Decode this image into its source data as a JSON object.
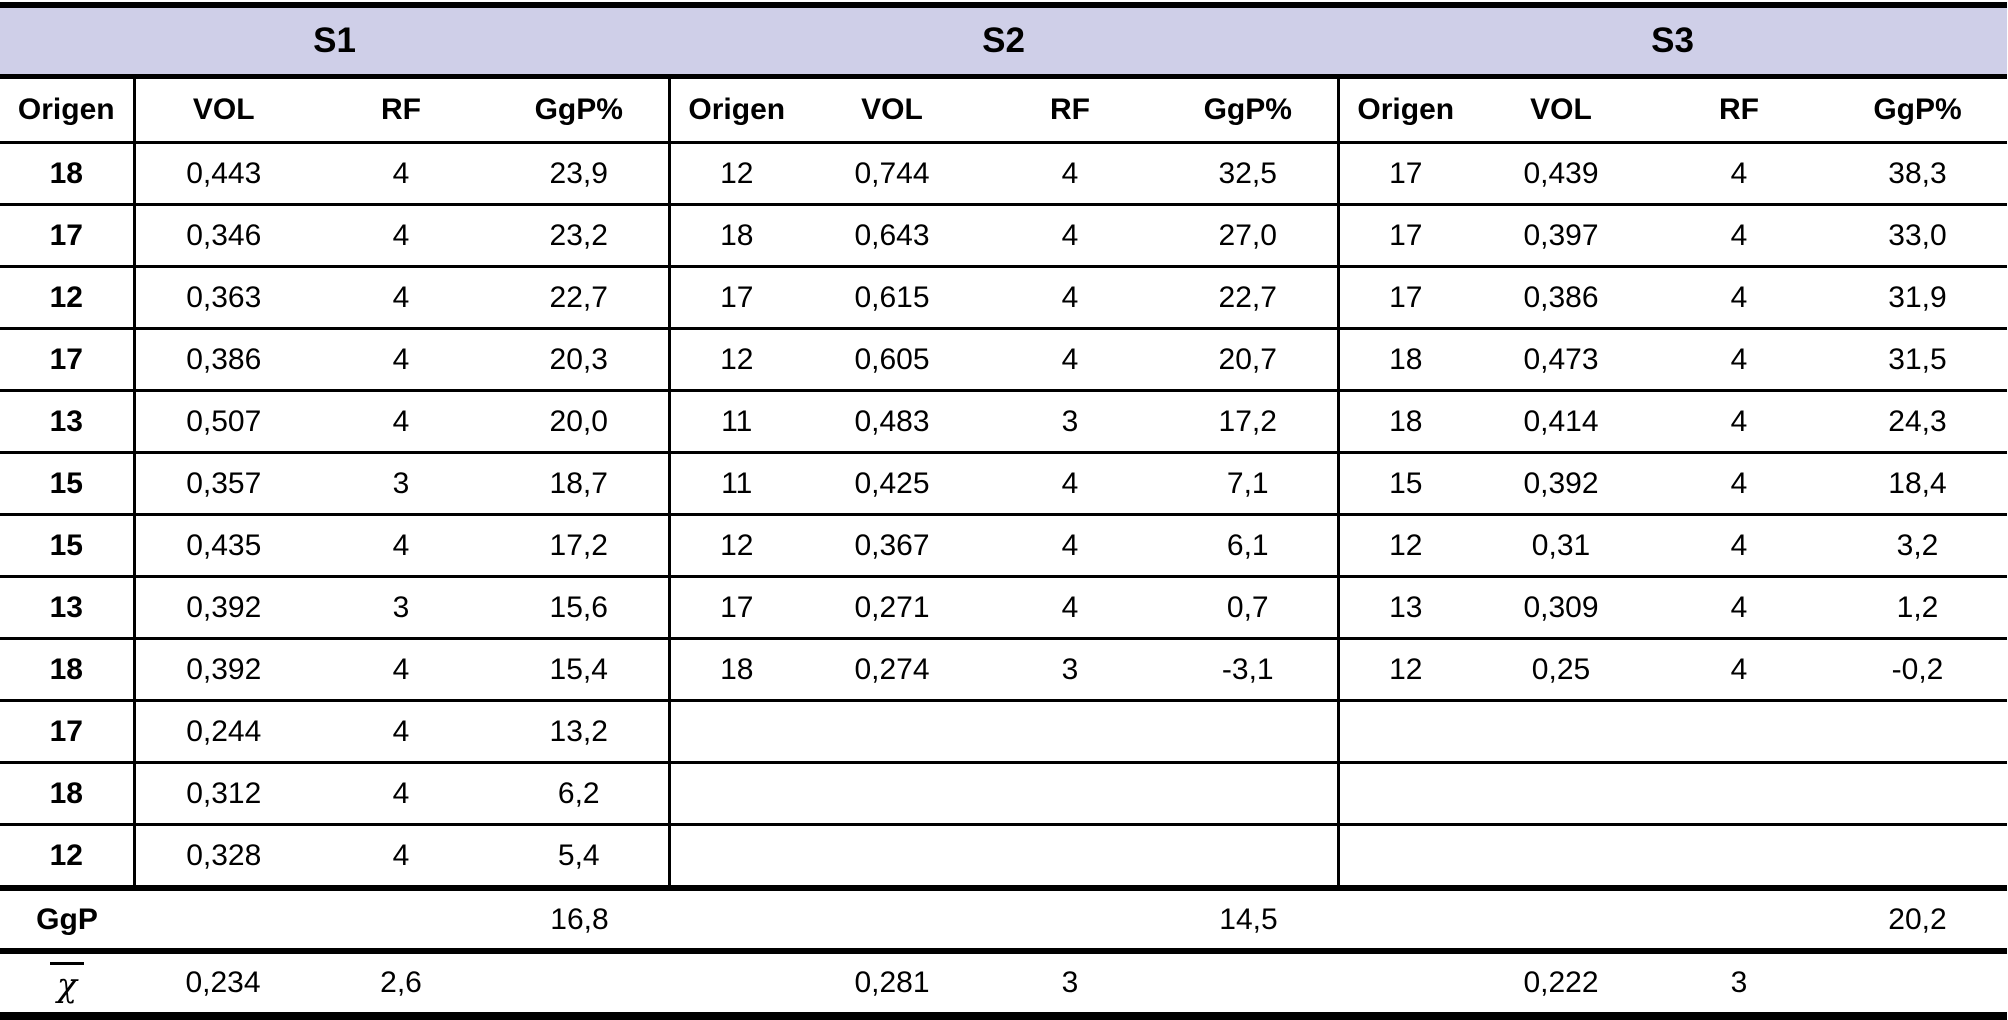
{
  "colors": {
    "band_bg": "#cfcfe8",
    "line": "#000000",
    "text": "#000000",
    "page_bg": "#ffffff"
  },
  "table": {
    "max_rows": 12,
    "summary": {
      "ggp_label": "GgP",
      "mean_label": "χ"
    },
    "sections": [
      {
        "title": "S1",
        "columns": [
          "Origen",
          "VOL",
          "RF",
          "GgP%"
        ],
        "rows": [
          [
            "18",
            "0,443",
            "4",
            "23,9"
          ],
          [
            "17",
            "0,346",
            "4",
            "23,2"
          ],
          [
            "12",
            "0,363",
            "4",
            "22,7"
          ],
          [
            "17",
            "0,386",
            "4",
            "20,3"
          ],
          [
            "13",
            "0,507",
            "4",
            "20,0"
          ],
          [
            "15",
            "0,357",
            "3",
            "18,7"
          ],
          [
            "15",
            "0,435",
            "4",
            "17,2"
          ],
          [
            "13",
            "0,392",
            "3",
            "15,6"
          ],
          [
            "18",
            "0,392",
            "4",
            "15,4"
          ],
          [
            "17",
            "0,244",
            "4",
            "13,2"
          ],
          [
            "18",
            "0,312",
            "4",
            "6,2"
          ],
          [
            "12",
            "0,328",
            "4",
            "5,4"
          ]
        ],
        "ggp_total": "16,8",
        "mean_vol": "0,234",
        "mean_rf": "2,6"
      },
      {
        "title": "S2",
        "columns": [
          "Origen",
          "VOL",
          "RF",
          "GgP%"
        ],
        "rows": [
          [
            "12",
            "0,744",
            "4",
            "32,5"
          ],
          [
            "18",
            "0,643",
            "4",
            "27,0"
          ],
          [
            "17",
            "0,615",
            "4",
            "22,7"
          ],
          [
            "12",
            "0,605",
            "4",
            "20,7"
          ],
          [
            "11",
            "0,483",
            "3",
            "17,2"
          ],
          [
            "11",
            "0,425",
            "4",
            "7,1"
          ],
          [
            "12",
            "0,367",
            "4",
            "6,1"
          ],
          [
            "17",
            "0,271",
            "4",
            "0,7"
          ],
          [
            "18",
            "0,274",
            "3",
            "-3,1"
          ]
        ],
        "ggp_total": "14,5",
        "mean_vol": "0,281",
        "mean_rf": "3"
      },
      {
        "title": "S3",
        "columns": [
          "Origen",
          "VOL",
          "RF",
          "GgP%"
        ],
        "rows": [
          [
            "17",
            "0,439",
            "4",
            "38,3"
          ],
          [
            "17",
            "0,397",
            "4",
            "33,0"
          ],
          [
            "17",
            "0,386",
            "4",
            "31,9"
          ],
          [
            "18",
            "0,473",
            "4",
            "31,5"
          ],
          [
            "18",
            "0,414",
            "4",
            "24,3"
          ],
          [
            "15",
            "0,392",
            "4",
            "18,4"
          ],
          [
            "12",
            "0,31",
            "4",
            "3,2"
          ],
          [
            "13",
            "0,309",
            "4",
            "1,2"
          ],
          [
            "12",
            "0,25",
            "4",
            "-0,2"
          ]
        ],
        "ggp_total": "20,2",
        "mean_vol": "0,222",
        "mean_rf": "3"
      }
    ]
  }
}
